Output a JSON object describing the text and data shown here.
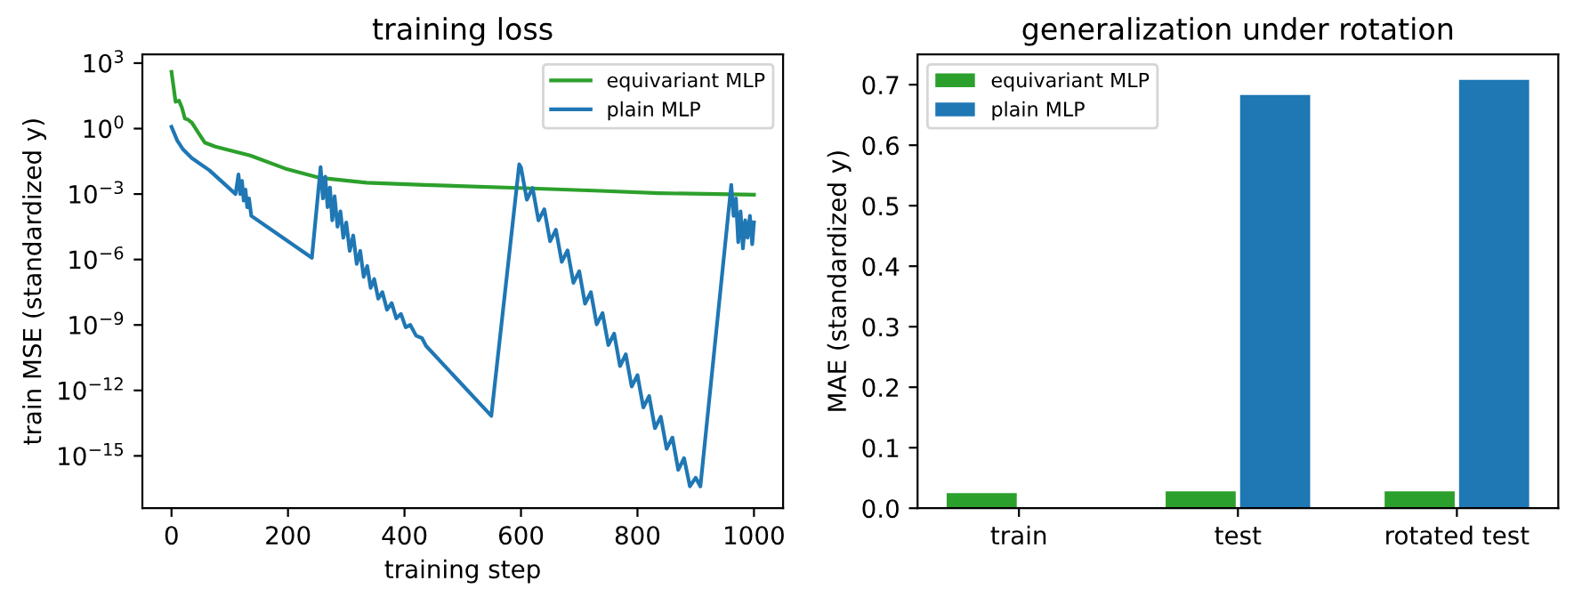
{
  "chart_data": [
    {
      "type": "line",
      "title": "training loss",
      "xlabel": "training step",
      "ylabel": "train MSE (standardized y)",
      "log": "y",
      "xlim": [
        -50,
        1050
      ],
      "xticks": [
        0,
        200,
        400,
        600,
        800,
        1000
      ],
      "ylim": [
        4e-18,
        2500.0
      ],
      "yticks": [
        {
          "value": 1000.0,
          "label": "10$^{3}$"
        },
        {
          "value": 1,
          "label": "10$^{0}$"
        },
        {
          "value": 0.001,
          "label": "10$^{−3}$"
        },
        {
          "value": 1e-06,
          "label": "10$^{−6}$"
        },
        {
          "value": 1e-09,
          "label": "10$^{−9}$"
        },
        {
          "value": 1e-12,
          "label": "10$^{−12}$"
        },
        {
          "value": 1e-15,
          "label": "10$^{−15}$"
        }
      ],
      "legend": "top right",
      "grid": false,
      "series": [
        {
          "name": "equivariant MLP",
          "color": "#2ca02c",
          "x": [
            0,
            7,
            13,
            18,
            23,
            28,
            35,
            45,
            57,
            75,
            135,
            195,
            255,
            335,
            435,
            596,
            736,
            837,
            1000
          ],
          "values": [
            398,
            17,
            19,
            8.9,
            2.9,
            2.6,
            1.86,
            0.72,
            0.23,
            0.15,
            0.059,
            0.0148,
            0.0055,
            0.0033,
            0.0026,
            0.0019,
            0.0014,
            0.0011,
            0.00093
          ]
        },
        {
          "name": "plain MLP",
          "color": "#1f77b4",
          "x": [
            0,
            10,
            20,
            35,
            65,
            110,
            115,
            118,
            121,
            124,
            127,
            130,
            133,
            137,
            241,
            256,
            260,
            264,
            268,
            272,
            276,
            280,
            285,
            290,
            295,
            300,
            306,
            312,
            318,
            324,
            330,
            336,
            342,
            348,
            355,
            362,
            370,
            378,
            386,
            394,
            402,
            410,
            420,
            430,
            437,
            549,
            597,
            600,
            610,
            620,
            630,
            640,
            650,
            660,
            670,
            680,
            690,
            700,
            710,
            720,
            730,
            740,
            750,
            760,
            770,
            780,
            790,
            800,
            810,
            820,
            830,
            840,
            850,
            860,
            870,
            880,
            890,
            900,
            908,
            961,
            965,
            969,
            973,
            977,
            981,
            985,
            989,
            993,
            997,
            1000
          ],
          "values": [
            1.2,
            0.28,
            0.11,
            0.044,
            0.0123,
            0.001,
            0.0079,
            0.001,
            0.004,
            0.0005,
            0.0016,
            0.00025,
            0.00063,
            0.0001,
            1.2e-06,
            0.017,
            0.00063,
            0.0063,
            0.00025,
            0.002,
            6.3e-05,
            0.00079,
            3.2e-05,
            0.00016,
            1e-05,
            5e-05,
            2.5e-06,
            1.26e-05,
            6.3e-07,
            2.5e-06,
            1.6e-07,
            5e-07,
            5e-08,
            1.26e-07,
            1.6e-08,
            3.2e-08,
            5e-09,
            1e-08,
            2e-09,
            3.2e-09,
            7.9e-10,
            1e-09,
            3.2e-10,
            2.5e-10,
            1.1e-10,
            6.8e-14,
            0.023,
            0.0166,
            0.00055,
            0.0019,
            6.2e-05,
            0.0002,
            6.9e-06,
            2.3e-05,
            7.8e-07,
            2.6e-06,
            8.5e-08,
            2.9e-07,
            9.5e-09,
            3.2e-08,
            1.07e-09,
            3.5e-09,
            1.2e-10,
            4e-10,
            1.3e-11,
            4.5e-11,
            1.5e-12,
            5e-12,
            1.66e-13,
            5.5e-13,
            1.86e-14,
            6.2e-14,
            2.1e-15,
            6.9e-15,
            2.3e-16,
            7.8e-16,
            4e-17,
            1e-16,
            4e-17,
            0.0026,
            0.0001,
            0.00063,
            6.3e-06,
            0.00016,
            3.2e-06,
            6.3e-05,
            1e-05,
            0.0001,
            5e-06,
            5e-05
          ]
        }
      ]
    },
    {
      "type": "bar",
      "title": "generalization under rotation",
      "ylabel": "MAE (standardized y)",
      "categories": [
        "train",
        "test",
        "rotated test"
      ],
      "ylim": [
        0,
        0.75
      ],
      "yticks": [
        {
          "value": 0,
          "label": "0.0"
        },
        0.1,
        0.2,
        0.3,
        0.4,
        0.5,
        0.6,
        0.7
      ],
      "legend": "top left",
      "grid": false,
      "series": [
        {
          "name": "equivariant MLP",
          "color": "#2ca02c",
          "values": [
            0.025,
            0.028,
            0.028
          ]
        },
        {
          "name": "plain MLP",
          "color": "#1f77b4",
          "values": [
            0.0,
            0.683,
            0.708
          ]
        }
      ]
    }
  ]
}
